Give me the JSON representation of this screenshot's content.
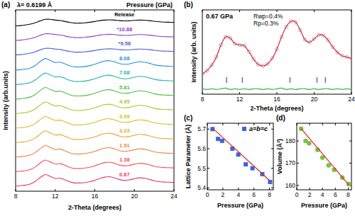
{
  "chart_data": [
    {
      "type": "line",
      "panel_label": "(a)",
      "annotations": [
        "λ= 0.6199 Å",
        "Pressure (GPa)"
      ],
      "x_label": "2-Theta (degrees)",
      "y_label": "Intensity (arb.units)",
      "x": [
        8,
        8.5,
        9,
        9.5,
        10,
        10.5,
        11,
        11.5,
        12,
        12.5,
        13,
        13.5,
        14,
        14.5,
        15,
        15.5,
        16,
        16.5,
        17,
        17.5,
        18,
        18.5,
        19,
        19.5,
        20,
        20.5,
        21,
        21.5,
        22,
        22.5,
        23,
        23.5,
        24
      ],
      "series": [
        {
          "name": "0.67",
          "color": "#e8336f",
          "values": [
            0.05,
            0.08,
            0.12,
            0.2,
            0.38,
            0.65,
            0.85,
            0.72,
            0.58,
            0.6,
            0.48,
            0.34,
            0.27,
            0.27,
            0.3,
            0.36,
            0.45,
            0.57,
            0.67,
            0.7,
            0.62,
            0.5,
            0.45,
            0.48,
            0.56,
            0.62,
            0.6,
            0.52,
            0.42,
            0.36,
            0.33,
            0.32,
            0.3
          ]
        },
        {
          "name": "1.38",
          "color": "#f0505a",
          "values": [
            1.05,
            1.08,
            1.12,
            1.2,
            1.38,
            1.65,
            1.85,
            1.72,
            1.58,
            1.6,
            1.48,
            1.34,
            1.27,
            1.27,
            1.3,
            1.36,
            1.45,
            1.57,
            1.67,
            1.7,
            1.62,
            1.5,
            1.45,
            1.48,
            1.56,
            1.62,
            1.6,
            1.52,
            1.42,
            1.36,
            1.33,
            1.32,
            1.3
          ]
        },
        {
          "name": "1.91",
          "color": "#f07f3c",
          "values": [
            2.05,
            2.08,
            2.12,
            2.2,
            2.38,
            2.65,
            2.85,
            2.72,
            2.58,
            2.6,
            2.48,
            2.34,
            2.27,
            2.27,
            2.3,
            2.36,
            2.45,
            2.57,
            2.67,
            2.7,
            2.62,
            2.5,
            2.45,
            2.48,
            2.56,
            2.62,
            2.6,
            2.52,
            2.42,
            2.36,
            2.33,
            2.32,
            2.3
          ]
        },
        {
          "name": "3.23",
          "color": "#eaa42c",
          "values": [
            3.05,
            3.08,
            3.12,
            3.2,
            3.38,
            3.65,
            3.85,
            3.72,
            3.58,
            3.6,
            3.48,
            3.34,
            3.27,
            3.27,
            3.3,
            3.36,
            3.45,
            3.57,
            3.67,
            3.7,
            3.62,
            3.5,
            3.45,
            3.48,
            3.56,
            3.62,
            3.6,
            3.52,
            3.42,
            3.36,
            3.33,
            3.32,
            3.3
          ]
        },
        {
          "name": "3.99",
          "color": "#d2bf22",
          "values": [
            4.05,
            4.08,
            4.12,
            4.2,
            4.38,
            4.65,
            4.85,
            4.72,
            4.58,
            4.6,
            4.48,
            4.34,
            4.27,
            4.27,
            4.3,
            4.36,
            4.45,
            4.57,
            4.67,
            4.7,
            4.62,
            4.5,
            4.45,
            4.48,
            4.56,
            4.62,
            4.6,
            4.52,
            4.42,
            4.36,
            4.33,
            4.32,
            4.3
          ]
        },
        {
          "name": "4.95",
          "color": "#a2c82a",
          "values": [
            5.05,
            5.08,
            5.12,
            5.2,
            5.38,
            5.65,
            5.85,
            5.72,
            5.58,
            5.6,
            5.48,
            5.34,
            5.27,
            5.27,
            5.3,
            5.36,
            5.45,
            5.57,
            5.67,
            5.7,
            5.62,
            5.5,
            5.45,
            5.48,
            5.56,
            5.62,
            5.6,
            5.52,
            5.42,
            5.36,
            5.33,
            5.32,
            5.3
          ]
        },
        {
          "name": "5.81",
          "color": "#4fbe44",
          "values": [
            6.05,
            6.08,
            6.12,
            6.2,
            6.38,
            6.65,
            6.85,
            6.72,
            6.58,
            6.6,
            6.48,
            6.34,
            6.27,
            6.27,
            6.3,
            6.36,
            6.45,
            6.57,
            6.67,
            6.7,
            6.62,
            6.5,
            6.45,
            6.48,
            6.56,
            6.62,
            6.6,
            6.52,
            6.42,
            6.36,
            6.33,
            6.32,
            6.3
          ]
        },
        {
          "name": "7.08",
          "color": "#1eb6a2",
          "values": [
            7.05,
            7.08,
            7.12,
            7.2,
            7.38,
            7.65,
            7.85,
            7.72,
            7.58,
            7.6,
            7.48,
            7.34,
            7.27,
            7.27,
            7.3,
            7.36,
            7.45,
            7.57,
            7.67,
            7.7,
            7.62,
            7.5,
            7.45,
            7.48,
            7.56,
            7.62,
            7.6,
            7.52,
            7.42,
            7.36,
            7.33,
            7.32,
            7.3
          ]
        },
        {
          "name": "8.08",
          "color": "#2490d8",
          "values": [
            8.05,
            8.08,
            8.12,
            8.2,
            8.38,
            8.65,
            8.85,
            8.72,
            8.58,
            8.6,
            8.48,
            8.34,
            8.27,
            8.27,
            8.3,
            8.36,
            8.45,
            8.57,
            8.67,
            8.7,
            8.62,
            8.5,
            8.45,
            8.48,
            8.56,
            8.62,
            8.6,
            8.52,
            8.42,
            8.36,
            8.33,
            8.32,
            8.3
          ]
        },
        {
          "name": "*9.56",
          "color": "#4a5fd6",
          "values": [
            9.1,
            9.12,
            9.16,
            9.22,
            9.32,
            9.45,
            9.55,
            9.55,
            9.5,
            9.47,
            9.4,
            9.33,
            9.29,
            9.29,
            9.31,
            9.35,
            9.4,
            9.46,
            9.5,
            9.52,
            9.5,
            9.46,
            9.44,
            9.45,
            9.48,
            9.5,
            9.49,
            9.46,
            9.42,
            9.38,
            9.36,
            9.35,
            9.34
          ]
        },
        {
          "name": "*10.88",
          "color": "#8a3fc6",
          "values": [
            10.1,
            10.12,
            10.16,
            10.22,
            10.32,
            10.45,
            10.55,
            10.55,
            10.5,
            10.47,
            10.4,
            10.33,
            10.29,
            10.29,
            10.31,
            10.35,
            10.4,
            10.46,
            10.5,
            10.52,
            10.5,
            10.46,
            10.44,
            10.45,
            10.48,
            10.5,
            10.49,
            10.46,
            10.42,
            10.38,
            10.36,
            10.35,
            10.34
          ]
        },
        {
          "name": "Release",
          "color": "#000000",
          "values": [
            11.1,
            11.12,
            11.16,
            11.22,
            11.32,
            11.45,
            11.55,
            11.55,
            11.5,
            11.47,
            11.4,
            11.33,
            11.29,
            11.29,
            11.31,
            11.35,
            11.4,
            11.46,
            11.5,
            11.52,
            11.5,
            11.46,
            11.44,
            11.45,
            11.48,
            11.5,
            11.49,
            11.46,
            11.42,
            11.38,
            11.36,
            11.35,
            11.34
          ]
        }
      ],
      "xlim": [
        8,
        24
      ],
      "xticks": [
        8,
        12,
        16,
        20,
        24
      ],
      "ylim": [
        -0.3,
        12.2
      ],
      "tick_labels": "x"
    },
    {
      "type": "line",
      "panel_label": "(b)",
      "annotations": [
        "0.67 GPa",
        "Rwp=0.4%",
        "Rp=0.3%"
      ],
      "x_label": "2-Theta (degrees)",
      "y_label": "Intensity (arb. units)",
      "x": [
        8,
        8.5,
        9,
        9.5,
        10,
        10.5,
        11,
        11.5,
        12,
        12.5,
        13,
        13.5,
        14,
        14.5,
        15,
        15.5,
        16,
        16.5,
        17,
        17.5,
        18,
        18.5,
        19,
        19.5,
        20,
        20.5,
        21,
        21.5,
        22,
        22.5,
        23,
        23.5,
        24
      ],
      "series": [
        {
          "type": "scatter",
          "marker": "circle",
          "color": "#a8a8a8",
          "values": [
            0.15,
            0.2,
            0.28,
            0.4,
            0.58,
            0.7,
            0.68,
            0.6,
            0.58,
            0.57,
            0.48,
            0.37,
            0.29,
            0.27,
            0.3,
            0.38,
            0.52,
            0.7,
            0.85,
            0.93,
            0.92,
            0.8,
            0.66,
            0.62,
            0.67,
            0.73,
            0.72,
            0.65,
            0.55,
            0.47,
            0.42,
            0.4,
            0.38
          ]
        },
        {
          "type": "line",
          "color": "#e0203a",
          "values": [
            0.15,
            0.2,
            0.28,
            0.4,
            0.58,
            0.7,
            0.68,
            0.6,
            0.58,
            0.57,
            0.48,
            0.37,
            0.29,
            0.27,
            0.3,
            0.38,
            0.52,
            0.7,
            0.85,
            0.93,
            0.92,
            0.8,
            0.66,
            0.62,
            0.67,
            0.73,
            0.72,
            0.65,
            0.55,
            0.47,
            0.42,
            0.4,
            0.38
          ]
        },
        {
          "type": "line",
          "color": "#3cb44b",
          "values": [
            -0.07,
            -0.08,
            -0.07,
            -0.08,
            -0.07,
            -0.06,
            -0.08,
            -0.07,
            -0.08,
            -0.07,
            -0.08,
            -0.07,
            -0.07,
            -0.08,
            -0.07,
            -0.08,
            -0.07,
            -0.06,
            -0.08,
            -0.07,
            -0.08,
            -0.07,
            -0.07,
            -0.08,
            -0.07,
            -0.08,
            -0.07,
            -0.07,
            -0.08,
            -0.07,
            -0.08,
            -0.07,
            -0.08
          ]
        }
      ],
      "reflections": [
        10.6,
        12.3,
        17.4,
        20.3,
        21.2
      ],
      "reflections_color": "#2a55c8",
      "xlim": [
        8,
        24
      ],
      "xticks": [
        8,
        12,
        16,
        20,
        24
      ],
      "ylim": [
        -0.15,
        1.1
      ],
      "tick_labels": "x"
    },
    {
      "type": "scatter",
      "panel_label": "(c)",
      "x_label": "Pressure (GPa)",
      "y_label": "Lattice Parameter (Å)",
      "x": [
        0.67,
        1.38,
        1.91,
        3.23,
        3.99,
        4.95,
        5.81,
        7.08,
        8.08
      ],
      "series": [
        {
          "name": "a=b=c",
          "marker": "square",
          "color": "#3a66d8",
          "values": [
            5.7,
            5.65,
            5.64,
            5.6,
            5.57,
            5.52,
            5.5,
            5.47,
            5.43
          ]
        },
        {
          "type": "line",
          "color": "#e02020",
          "x": [
            0.67,
            8.08
          ],
          "values": [
            5.705,
            5.435
          ]
        }
      ],
      "legend": "upper right",
      "xlim": [
        0,
        8.5
      ],
      "xticks": [
        0,
        2,
        4,
        6,
        8
      ],
      "ylim": [
        5.39,
        5.73
      ],
      "yticks": [
        5.4,
        5.5,
        5.6,
        5.7
      ]
    },
    {
      "type": "scatter",
      "panel_label": "(d)",
      "x_label": "Pressure (GPa)",
      "y_label": "Volume (Å³)",
      "x": [
        0.67,
        1.38,
        1.91,
        3.23,
        3.99,
        4.95,
        5.81,
        7.08,
        8.08
      ],
      "series": [
        {
          "marker": "circle",
          "color": "#7cc243",
          "values": [
            185.5,
            180,
            179,
            176,
            172.5,
            169,
            167,
            163.5,
            160.5
          ]
        },
        {
          "type": "line",
          "color": "#e02020",
          "x": [
            0.67,
            8.08
          ],
          "values": [
            185.6,
            160.3
          ]
        }
      ],
      "xlim": [
        0,
        8.5
      ],
      "xticks": [
        0,
        2,
        4,
        6,
        8
      ],
      "ylim": [
        158,
        188
      ],
      "yticks": [
        160,
        170,
        180
      ]
    }
  ]
}
